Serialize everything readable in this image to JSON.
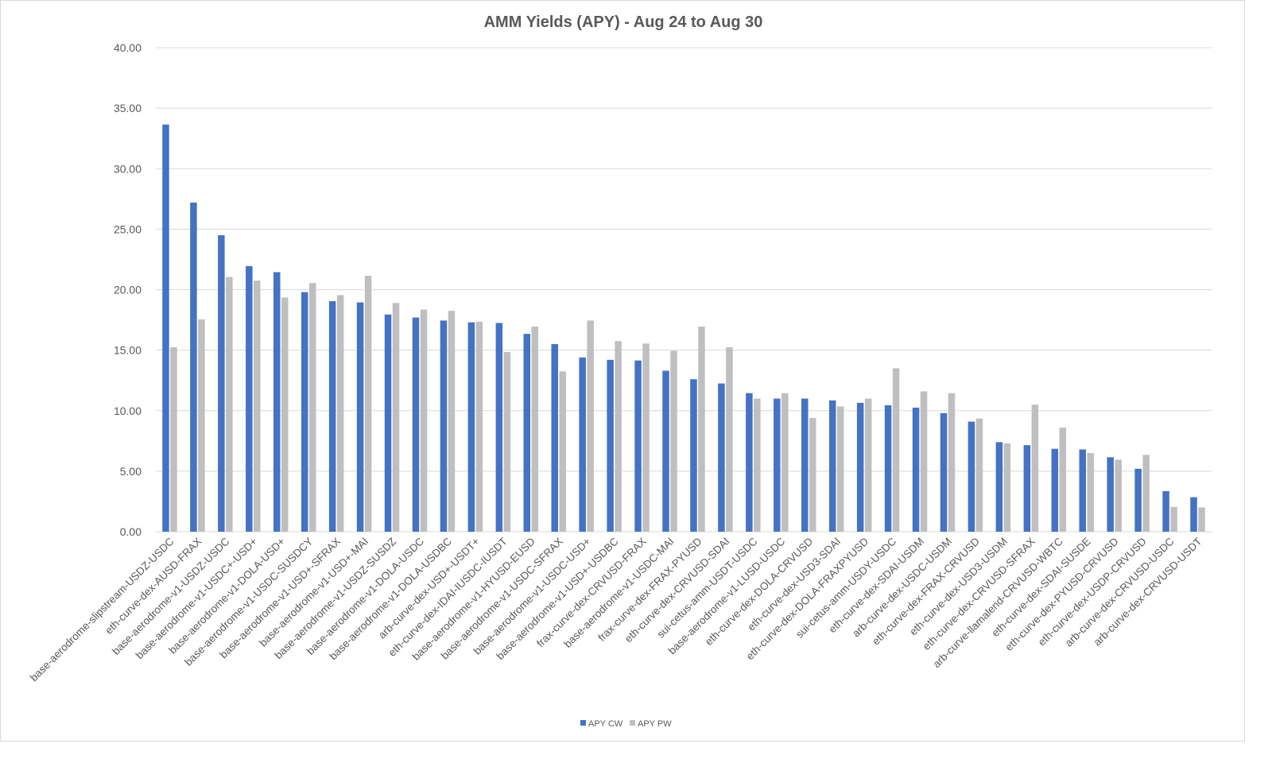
{
  "chart_data": {
    "type": "bar",
    "title": "AMM Yields (APY) - Aug 24 to Aug 30",
    "xlabel": "",
    "ylabel": "",
    "ylim": [
      0,
      40
    ],
    "yticks": [
      "0.00",
      "5.00",
      "10.00",
      "15.00",
      "20.00",
      "25.00",
      "30.00",
      "35.00",
      "40.00"
    ],
    "grid": true,
    "legend_position": "bottom",
    "categories": [
      "base-aerodrome-slipstream-USDZ-USDC",
      "eth-curve-dex-AUSD-FRAX",
      "base-aerodrome-v1-USDZ-USDC",
      "base-aerodrome-v1-USDC+-USD+",
      "base-aerodrome-v1-DOLA-USD+",
      "base-aerodrome-v1-USDC-SUSDCY",
      "base-aerodrome-v1-USD+-SFRAX",
      "base-aerodrome-v1-USD+-MAI",
      "base-aerodrome-v1-USDZ-SUSDZ",
      "base-aerodrome-v1-DOLA-USDC",
      "base-aerodrome-v1-DOLA-USDBC",
      "arb-curve-dex-USD+-USDT+",
      "eth-curve-dex-IDAI-IUSDC-IUSDT",
      "base-aerodrome-v1-HYUSD-EUSD",
      "base-aerodrome-v1-USDC-SFRAX",
      "base-aerodrome-v1-USDC-USD+",
      "base-aerodrome-v1-USD+-USDBC",
      "frax-curve-dex-CRVUSD-FRAX",
      "base-aerodrome-v1-USDC-MAI",
      "frax-curve-dex-FRAX-PYUSD",
      "eth-curve-dex-CRVUSD-SDAI",
      "sui-cetus-amm-USDT-USDC",
      "base-aerodrome-v1-LUSD-USDC",
      "eth-curve-dex-DOLA-CRVUSD",
      "eth-curve-dex-USD3-SDAI",
      "eth-curve-dex-DOLA-FRAXPYUSD",
      "sui-cetus-amm-USDY-USDC",
      "eth-curve-dex-SDAI-USDM",
      "arb-curve-dex-USDC-USDM",
      "eth-curve-dex-FRAX-CRVUSD",
      "eth-curve-dex-USD3-USDM",
      "eth-curve-dex-CRVUSD-SFRAX",
      "arb-curve-llamalend-CRVUSD-WBTC",
      "eth-curve-dex-SDAI-SUSDE",
      "eth-curve-dex-PYUSD-CRVUSD",
      "eth-curve-dex-USDP-CRVUSD",
      "arb-curve-dex-CRVUSD-USDC",
      "arb-curve-dex-CRVUSD-USDT"
    ],
    "series": [
      {
        "name": "APY CW",
        "color": "#4472c4",
        "values": [
          33.65,
          27.2,
          24.5,
          21.95,
          21.45,
          19.8,
          19.05,
          18.95,
          17.95,
          17.7,
          17.45,
          17.3,
          17.25,
          16.35,
          15.5,
          14.4,
          14.2,
          14.15,
          13.3,
          12.6,
          12.25,
          11.45,
          11.0,
          11.0,
          10.85,
          10.65,
          10.45,
          10.25,
          9.8,
          9.1,
          7.4,
          7.15,
          6.85,
          6.8,
          6.15,
          5.2,
          3.35,
          2.85
        ]
      },
      {
        "name": "APY PW",
        "color": "#bfbfbf",
        "values": [
          15.25,
          17.55,
          21.05,
          20.75,
          19.35,
          20.55,
          19.55,
          21.15,
          18.9,
          18.35,
          18.25,
          17.35,
          14.85,
          16.95,
          13.25,
          17.45,
          15.75,
          15.55,
          14.95,
          16.95,
          15.25,
          11.0,
          11.45,
          9.4,
          10.35,
          11.0,
          13.5,
          11.6,
          11.45,
          9.35,
          7.3,
          10.5,
          8.6,
          6.5,
          5.95,
          6.35,
          2.05,
          2.0
        ]
      }
    ]
  }
}
